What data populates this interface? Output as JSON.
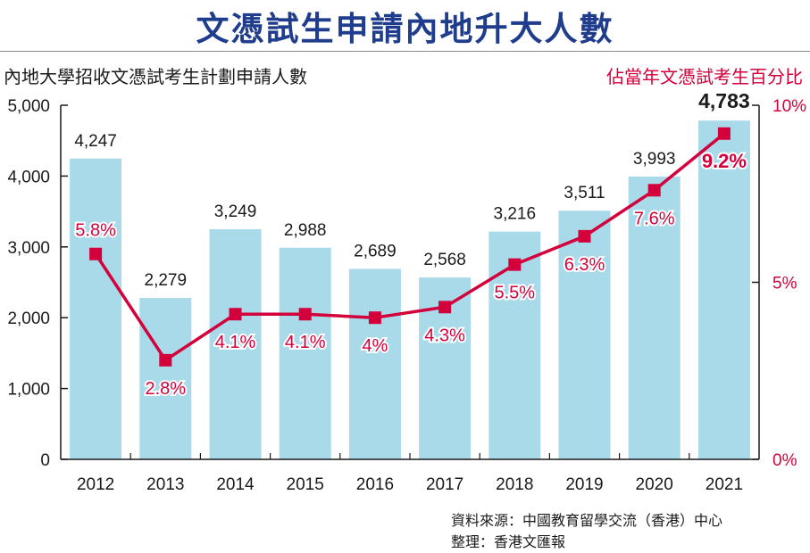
{
  "headline": "文憑試生申請內地升大人數",
  "subtitle_left": "內地大學招收文憑試考生計劃申請人數",
  "subtitle_right": "佔當年文憑試考生百分比",
  "source_line": "資料來源：中國教育留學交流（香港）中心",
  "compiled_line": "整理：香港文匯報",
  "colors": {
    "bar": "#a8daea",
    "line": "#d4003b",
    "title": "#1f3d8c",
    "axis": "#1a1a1a"
  },
  "chart_data": {
    "type": "bar",
    "categories": [
      "2012",
      "2013",
      "2014",
      "2015",
      "2016",
      "2017",
      "2018",
      "2019",
      "2020",
      "2021"
    ],
    "series": [
      {
        "type": "bar",
        "axis": "left",
        "values": [
          4247,
          2279,
          3249,
          2988,
          2689,
          2568,
          3216,
          3511,
          3993,
          4783
        ],
        "labels": [
          "4,247",
          "2,279",
          "3,249",
          "2,988",
          "2,689",
          "2,568",
          "3,216",
          "3,511",
          "3,993",
          "4,783"
        ]
      },
      {
        "type": "line",
        "axis": "right",
        "values": [
          5.8,
          2.8,
          4.1,
          4.1,
          4.0,
          4.3,
          5.5,
          6.3,
          7.6,
          9.2
        ],
        "labels": [
          "5.8%",
          "2.8%",
          "4.1%",
          "4.1%",
          "4%",
          "4.3%",
          "5.5%",
          "6.3%",
          "7.6%",
          "9.2%"
        ]
      }
    ],
    "y_left": {
      "lim": [
        0,
        5000
      ],
      "ticks": [
        "0",
        "1,000",
        "2,000",
        "3,000",
        "4,000",
        "5,000"
      ]
    },
    "y_right": {
      "lim": [
        0,
        10
      ],
      "ticks": [
        "0%",
        "5%",
        "10%"
      ]
    },
    "grid": false
  }
}
